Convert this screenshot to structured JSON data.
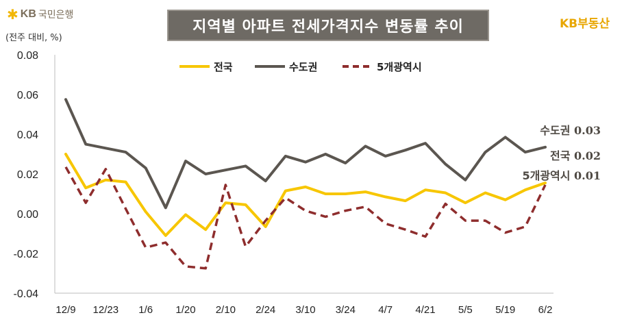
{
  "header": {
    "logo_text": "KB국민은행",
    "logo_kb": "KB",
    "logo_bank": "국민은행",
    "title": "지역별 아파트 전세가격지수 변동률 추이",
    "brand": "KB부동산",
    "unit": "(전주 대비, %)"
  },
  "colors": {
    "nationwide": "#f7c600",
    "capital": "#5b5650",
    "metro5": "#8e2d2d",
    "title_bg": "#6e6a64",
    "brand": "#e8a600"
  },
  "chart_data": {
    "type": "line",
    "title": "지역별 아파트 전세가격지수 변동률 추이",
    "ylabel": "(전주 대비, %)",
    "ylim": [
      -0.04,
      0.08
    ],
    "yticks": [
      "0.08",
      "0.06",
      "0.04",
      "0.02",
      "0.00",
      "-0.02",
      "-0.04"
    ],
    "ytick_values": [
      0.08,
      0.06,
      0.04,
      0.02,
      0.0,
      -0.02,
      -0.04
    ],
    "x_tick_labels": [
      "12/9",
      "12/23",
      "1/6",
      "1/20",
      "2/10",
      "2/24",
      "3/10",
      "3/24",
      "4/7",
      "4/21",
      "5/5",
      "5/19",
      "6/2"
    ],
    "legend_position": "top-center",
    "grid": false,
    "series": [
      {
        "name": "전국",
        "style": "solid",
        "values": [
          0.03,
          0.013,
          0.017,
          0.016,
          0.001,
          -0.011,
          -0.0005,
          -0.008,
          0.0055,
          0.0045,
          -0.0065,
          0.0115,
          0.0135,
          0.01,
          0.01,
          0.011,
          0.0085,
          0.0065,
          0.012,
          0.0105,
          0.0055,
          0.0105,
          0.007,
          0.012,
          0.0155
        ]
      },
      {
        "name": "수도권",
        "style": "solid",
        "values": [
          0.0575,
          0.035,
          0.033,
          0.031,
          0.023,
          0.003,
          0.0265,
          0.02,
          0.022,
          0.024,
          0.0165,
          0.029,
          0.026,
          0.03,
          0.0255,
          0.034,
          0.029,
          0.032,
          0.0355,
          0.025,
          0.017,
          0.031,
          0.0385,
          0.031,
          0.0335
        ]
      },
      {
        "name": "5개광역시",
        "style": "dashed",
        "values": [
          0.0235,
          0.0055,
          0.0225,
          0.0025,
          -0.017,
          -0.0145,
          -0.0265,
          -0.0275,
          0.0145,
          -0.0165,
          -0.0035,
          0.008,
          0.0015,
          -0.0015,
          0.0015,
          0.0035,
          -0.005,
          -0.008,
          -0.0115,
          0.005,
          -0.0035,
          -0.0035,
          -0.0095,
          -0.0065,
          0.0145
        ]
      }
    ],
    "end_labels": [
      {
        "text": "수도권",
        "value": "0.03"
      },
      {
        "text": "전국",
        "value": "0.02"
      },
      {
        "text": "5개광역시",
        "value": "0.01"
      }
    ]
  }
}
